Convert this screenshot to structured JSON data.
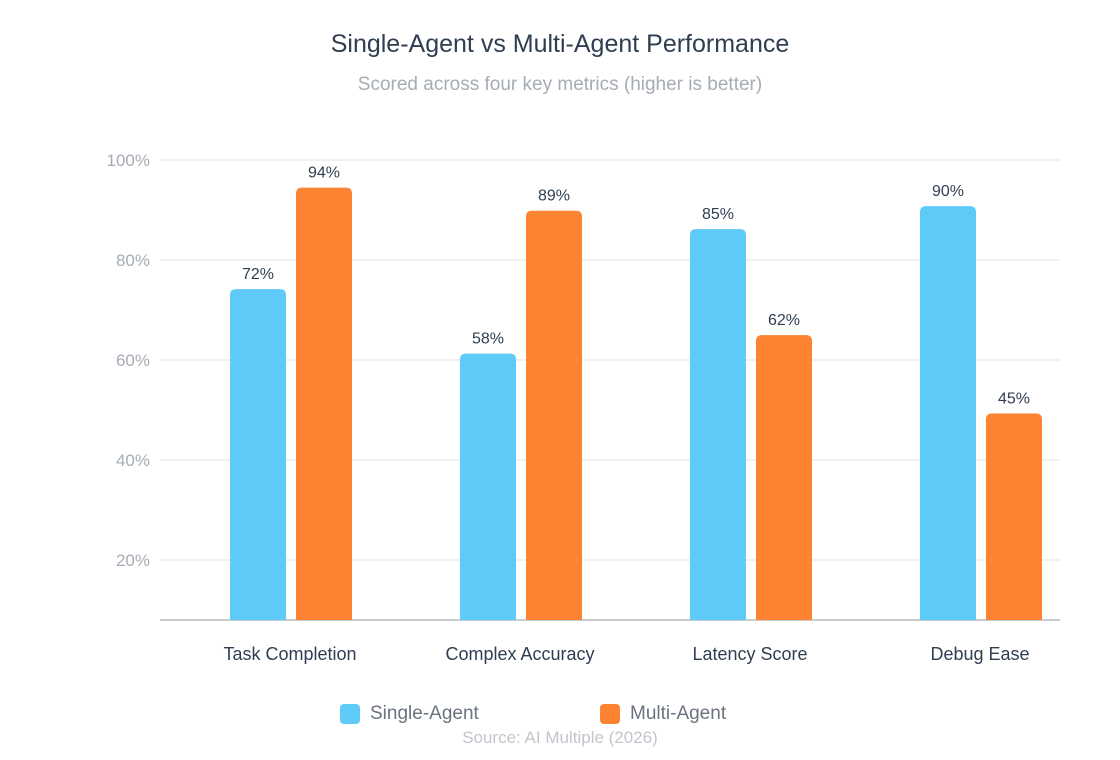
{
  "chart_data": {
    "type": "bar",
    "title": "Single-Agent vs Multi-Agent Performance",
    "subtitle": "Scored across four key metrics (higher is better)",
    "categories": [
      "Task Completion",
      "Complex Accuracy",
      "Latency Score",
      "Debug Ease"
    ],
    "series": [
      {
        "name": "Single-Agent",
        "color": "#5ECAF8",
        "values": [
          72,
          58,
          85,
          90
        ],
        "labels": [
          "72%",
          "58%",
          "85%",
          "90%"
        ]
      },
      {
        "name": "Multi-Agent",
        "color": "#FB8331",
        "values": [
          94,
          89,
          62,
          45
        ],
        "labels": [
          "94%",
          "89%",
          "62%",
          "45%"
        ]
      }
    ],
    "yticks": [
      20,
      40,
      60,
      80,
      100
    ],
    "ytick_labels": [
      "20%",
      "40%",
      "60%",
      "80%",
      "100%"
    ],
    "ylim": [
      8,
      100
    ],
    "grid": true,
    "legend_position": "bottom",
    "source": "Source: AI Multiple (2026)"
  }
}
